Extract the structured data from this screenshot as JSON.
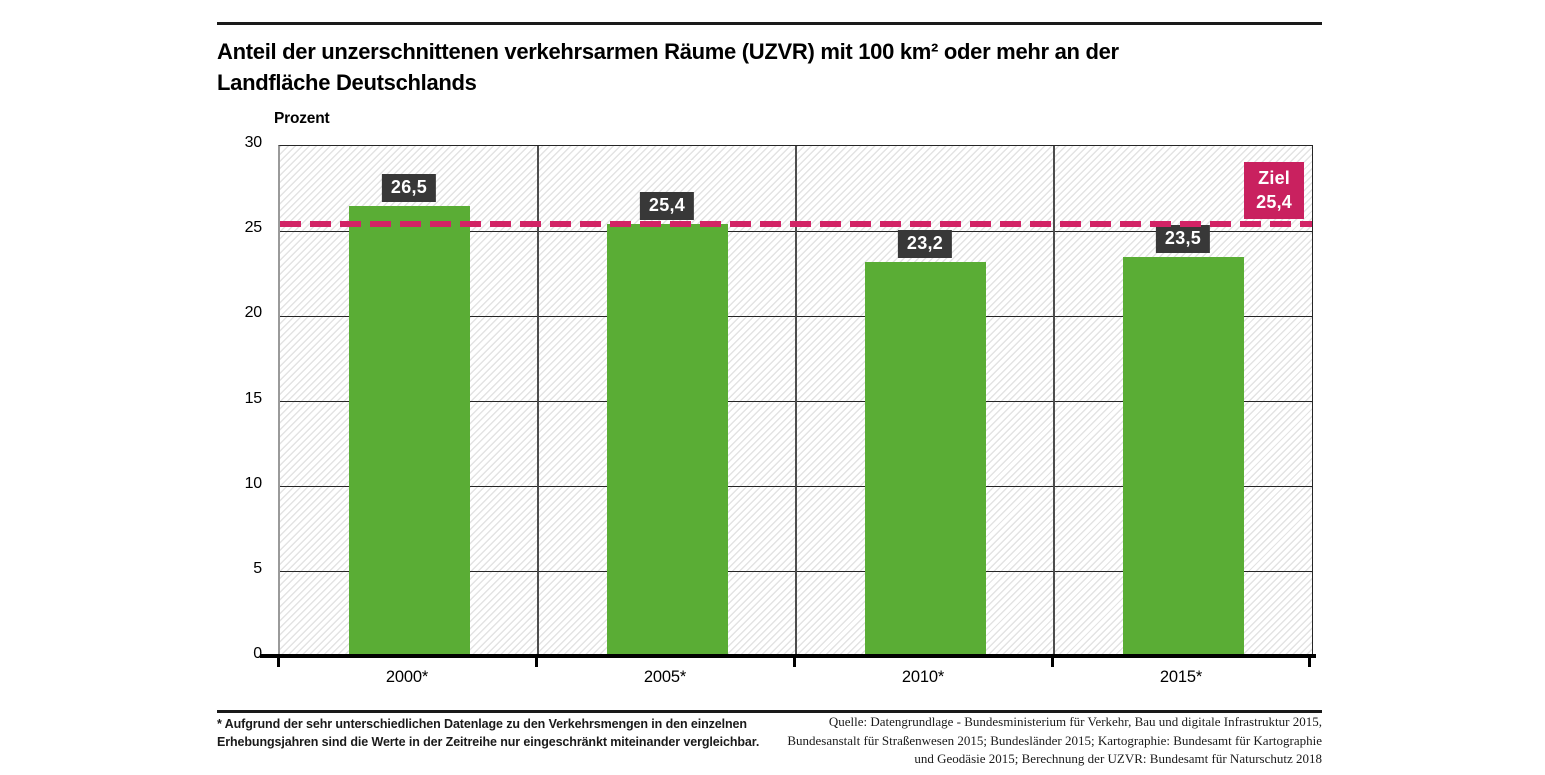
{
  "header": {
    "title_line1": "Anteil der unzerschnittenen verkehrsarmen Räume (UZVR) mit 100 km² oder mehr an der",
    "title_line2": "Landfläche Deutschlands"
  },
  "chart_data": {
    "type": "bar",
    "title": "Anteil der unzerschnittenen verkehrsarmen Räume (UZVR) mit 100 km² oder mehr an der Landfläche Deutschlands",
    "ylabel": "Prozent",
    "categories": [
      "2000*",
      "2005*",
      "2010*",
      "2015*"
    ],
    "values": [
      26.5,
      25.4,
      23.2,
      23.5
    ],
    "value_labels": [
      "26,5",
      "25,4",
      "23,2",
      "23,5"
    ],
    "ylim": [
      0,
      30
    ],
    "yticks": [
      0,
      5,
      10,
      15,
      20,
      25,
      30
    ],
    "grid": "horizontal gridlines every 5, vertical category dividers",
    "legend": "none",
    "target_line": {
      "value": 25.4,
      "label_line1": "Ziel",
      "label_line2": "25,4"
    },
    "colors": {
      "bar": "#5aad35",
      "target_line": "#d22365",
      "target_box": "#c9215f",
      "value_label_box": "#383838",
      "value_label_text": "#ffffff"
    }
  },
  "footnote": {
    "line1": "* Aufgrund der sehr unterschiedlichen Datenlage zu den Verkehrsmengen in den einzelnen",
    "line2": "Erhebungsjahren sind die Werte in der Zeitreihe nur eingeschränkt miteinander vergleichbar."
  },
  "source": {
    "line1": "Quelle: Datengrundlage - Bundesministerium für Verkehr, Bau und digitale Infrastruktur 2015,",
    "line2": "Bundesanstalt für Straßenwesen 2015; Bundesländer 2015; Kartographie: Bundesamt für Kartographie",
    "line3": "und Geodäsie 2015;  Berechnung der UZVR: Bundesamt für Naturschutz 2018"
  }
}
